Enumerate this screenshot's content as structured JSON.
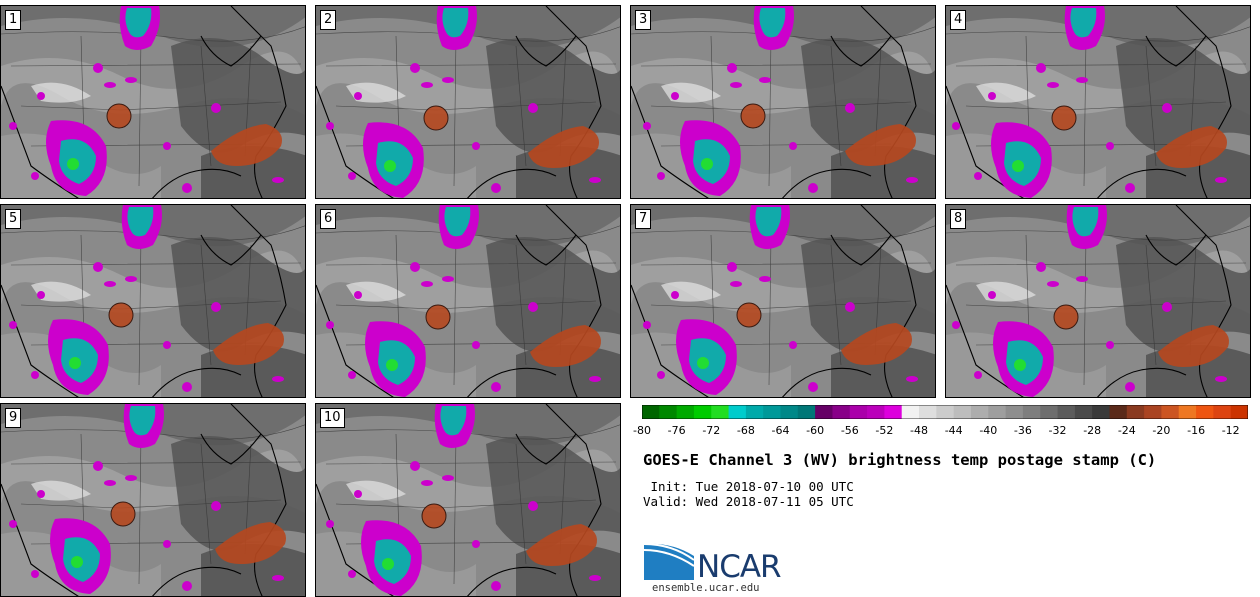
{
  "title": "GOES-E Channel 3 (WV) brightness temp postage stamp (C)",
  "init_line": " Init: Tue 2018-07-10 00 UTC",
  "valid_line": "Valid: Wed 2018-07-11 05 UTC",
  "members": [
    "1",
    "2",
    "3",
    "4",
    "5",
    "6",
    "7",
    "8",
    "9",
    "10"
  ],
  "colorbar": {
    "min": -80,
    "max": -10,
    "step": 2,
    "tick_labels": [
      "-80",
      "-76",
      "-72",
      "-68",
      "-64",
      "-60",
      "-56",
      "-52",
      "-48",
      "-44",
      "-40",
      "-36",
      "-32",
      "-28",
      "-24",
      "-20",
      "-16",
      "-12"
    ],
    "colors": [
      "#006600",
      "#008800",
      "#00aa00",
      "#00cc00",
      "#22dd22",
      "#00cccc",
      "#00aaaa",
      "#009999",
      "#008888",
      "#007777",
      "#660066",
      "#880088",
      "#aa00aa",
      "#bb00bb",
      "#dd00dd",
      "#f2f2f2",
      "#dedede",
      "#cccccc",
      "#bdbdbd",
      "#adadad",
      "#9e9e9e",
      "#8e8e8e",
      "#7e7e7e",
      "#6e6e6e",
      "#5c5c5c",
      "#4a4a4a",
      "#3a3a3a",
      "#5a2a1a",
      "#8a3a20",
      "#aa4422",
      "#cc5522",
      "#ee7722",
      "#ee5511",
      "#dd4411",
      "#cc3300"
    ]
  },
  "logo": {
    "text": "NCAR",
    "url": "ensemble.ucar.edu",
    "color": "#1a3c6e",
    "swoosh_color": "#1f7ec2"
  },
  "map_colors": {
    "moist_magenta": "#cc00cc",
    "cold_cyan": "#11aaaa",
    "cold_green": "#22dd33",
    "warm_orange": "#b5481f",
    "coast": "#000000",
    "borders": "#333333"
  }
}
